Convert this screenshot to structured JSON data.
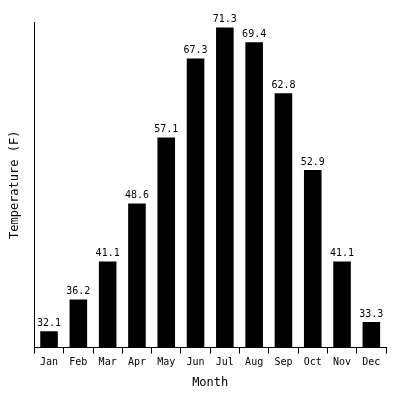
{
  "chart_data": {
    "type": "bar",
    "x_label": "Month",
    "y_label": "Temperature (F)",
    "categories": [
      "Jan",
      "Feb",
      "Mar",
      "Apr",
      "May",
      "Jun",
      "Jul",
      "Aug",
      "Sep",
      "Oct",
      "Nov",
      "Dec"
    ],
    "values": [
      32.1,
      36.2,
      41.1,
      48.6,
      57.1,
      67.3,
      71.3,
      69.4,
      62.8,
      52.9,
      41.1,
      33.3
    ],
    "color": "#000000",
    "ylim": [
      30,
      72
    ],
    "yticks": [],
    "grid": false,
    "data_labels": true,
    "tick_labels": "x"
  }
}
